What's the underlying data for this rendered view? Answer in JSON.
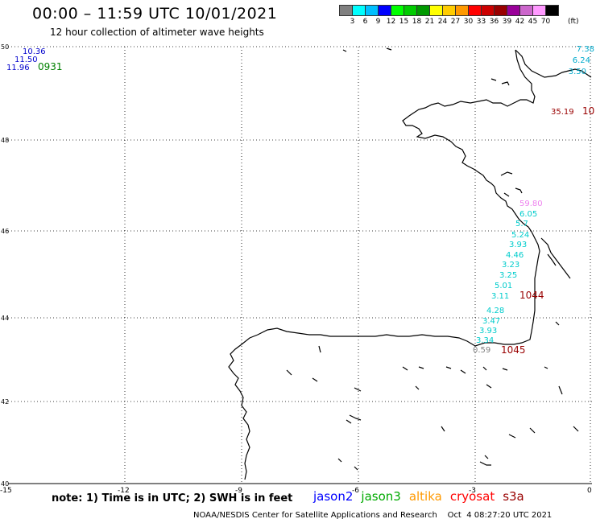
{
  "header": {
    "title": "00:00 – 11:59 UTC 10/01/2021",
    "subtitle": "12 hour collection of altimeter wave heights"
  },
  "legend": {
    "colors": [
      "#808080",
      "#00ffff",
      "#00bfff",
      "#0000ff",
      "#00ff00",
      "#00cc00",
      "#009900",
      "#ffff00",
      "#ffcc00",
      "#ff9900",
      "#ff0000",
      "#cc0000",
      "#990000",
      "#990099",
      "#cc66cc",
      "#ff99ff",
      "#000000"
    ],
    "labels": [
      "3",
      "6",
      "9",
      "12",
      "15",
      "18",
      "21",
      "24",
      "27",
      "30",
      "33",
      "36",
      "39",
      "42",
      "45",
      "70"
    ],
    "unit": "(ft)"
  },
  "axes": {
    "lat_labels": [
      "50",
      "48",
      "46",
      "44",
      "42",
      "40"
    ],
    "lon_labels": [
      "-15",
      "-12",
      "-9",
      "-6",
      "-3",
      "0"
    ]
  },
  "observations": {
    "topleft": [
      {
        "text": "10.36",
        "color": "#0000cc"
      },
      {
        "text": "11.50",
        "color": "#0000cc"
      },
      {
        "text": "11.96",
        "color": "#0000cc"
      },
      {
        "text": "0931",
        "color": "#008000"
      }
    ],
    "topright": [
      {
        "text": "7.38",
        "color": "#00aacc"
      },
      {
        "text": "6.24",
        "color": "#00aacc"
      },
      {
        "text": "3.50",
        "color": "#00aacc"
      }
    ],
    "right_mid": [
      {
        "text": "35.19",
        "color": "#990000"
      },
      {
        "text": "10",
        "color": "#990000"
      }
    ],
    "track": [
      {
        "text": "59.80",
        "color": "#ee82ee"
      },
      {
        "text": "6.05",
        "color": "#00cccc"
      },
      {
        "text": "5.7",
        "color": "#00cccc"
      },
      {
        "text": "5.24",
        "color": "#00cccc"
      },
      {
        "text": "3.93",
        "color": "#00cccc"
      },
      {
        "text": "4.46",
        "color": "#00cccc"
      },
      {
        "text": "3.23",
        "color": "#00cccc"
      },
      {
        "text": "3.25",
        "color": "#00cccc"
      },
      {
        "text": "5.01",
        "color": "#00cccc"
      },
      {
        "text": "3.11",
        "color": "#00cccc"
      },
      {
        "text": "1044",
        "color": "#990000"
      },
      {
        "text": "4.28",
        "color": "#00cccc"
      },
      {
        "text": "3.47",
        "color": "#00cccc"
      },
      {
        "text": "3.93",
        "color": "#00cccc"
      },
      {
        "text": "3.34",
        "color": "#00cccc"
      },
      {
        "text": "0.59",
        "color": "#808080"
      },
      {
        "text": "1045",
        "color": "#990000"
      }
    ]
  },
  "footer": {
    "note": "note: 1) Time is in UTC; 2) SWH is in feet",
    "missions": [
      {
        "name": "jason2",
        "color": "#0000ff"
      },
      {
        "name": "jason3",
        "color": "#00aa00"
      },
      {
        "name": "altika",
        "color": "#ff9900"
      },
      {
        "name": "cryosat",
        "color": "#ff0000"
      },
      {
        "name": "s3a",
        "color": "#990000"
      }
    ],
    "credit": "NOAA/NESDIS Center for Satellite Applications and Research    Oct  4 08:27:20 UTC 2021"
  }
}
